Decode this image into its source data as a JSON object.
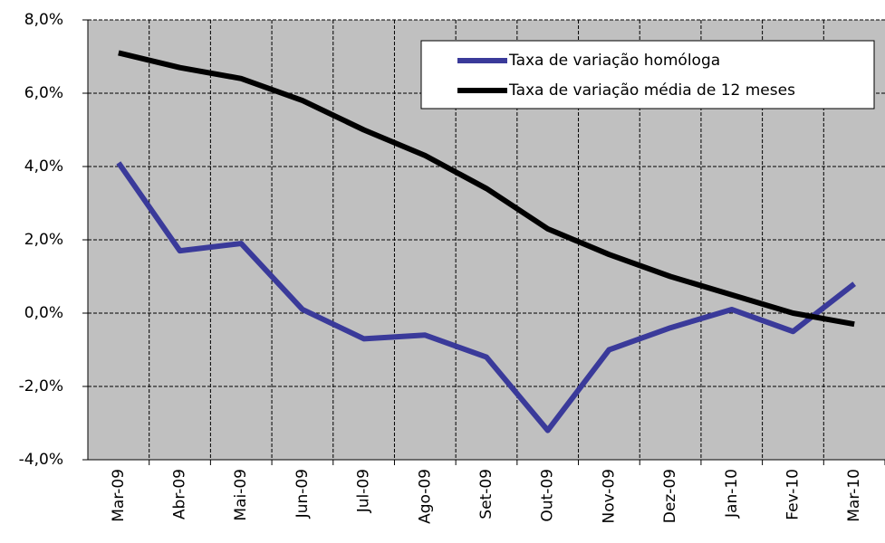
{
  "chart_data": {
    "type": "line",
    "categories": [
      "Mar-09",
      "Abr-09",
      "Mai-09",
      "Jun-09",
      "Jul-09",
      "Ago-09",
      "Set-09",
      "Out-09",
      "Nov-09",
      "Dez-09",
      "Jan-10",
      "Fev-10",
      "Mar-10"
    ],
    "series": [
      {
        "name": "Taxa de variação homóloga",
        "color": "#3a3a9a",
        "values": [
          4.1,
          1.7,
          1.9,
          0.1,
          -0.7,
          -0.6,
          -1.2,
          -3.2,
          -1.0,
          -0.4,
          0.1,
          -0.5,
          0.8
        ]
      },
      {
        "name": "Taxa de variação média de 12 meses",
        "color": "#000000",
        "values": [
          7.1,
          6.7,
          6.4,
          5.8,
          5.0,
          4.3,
          3.4,
          2.3,
          1.6,
          1.0,
          0.5,
          0.0,
          -0.3
        ]
      }
    ],
    "ylim": [
      -4,
      8
    ],
    "yticks": [
      {
        "value": -4,
        "label": "-4,0%"
      },
      {
        "value": -2,
        "label": "-2,0%"
      },
      {
        "value": 0,
        "label": "0,0%"
      },
      {
        "value": 2,
        "label": "2,0%"
      },
      {
        "value": 4,
        "label": "4,0%"
      },
      {
        "value": 6,
        "label": "6,0%"
      },
      {
        "value": 8,
        "label": "8,0%"
      }
    ],
    "grid": true,
    "legend": "upper right"
  }
}
